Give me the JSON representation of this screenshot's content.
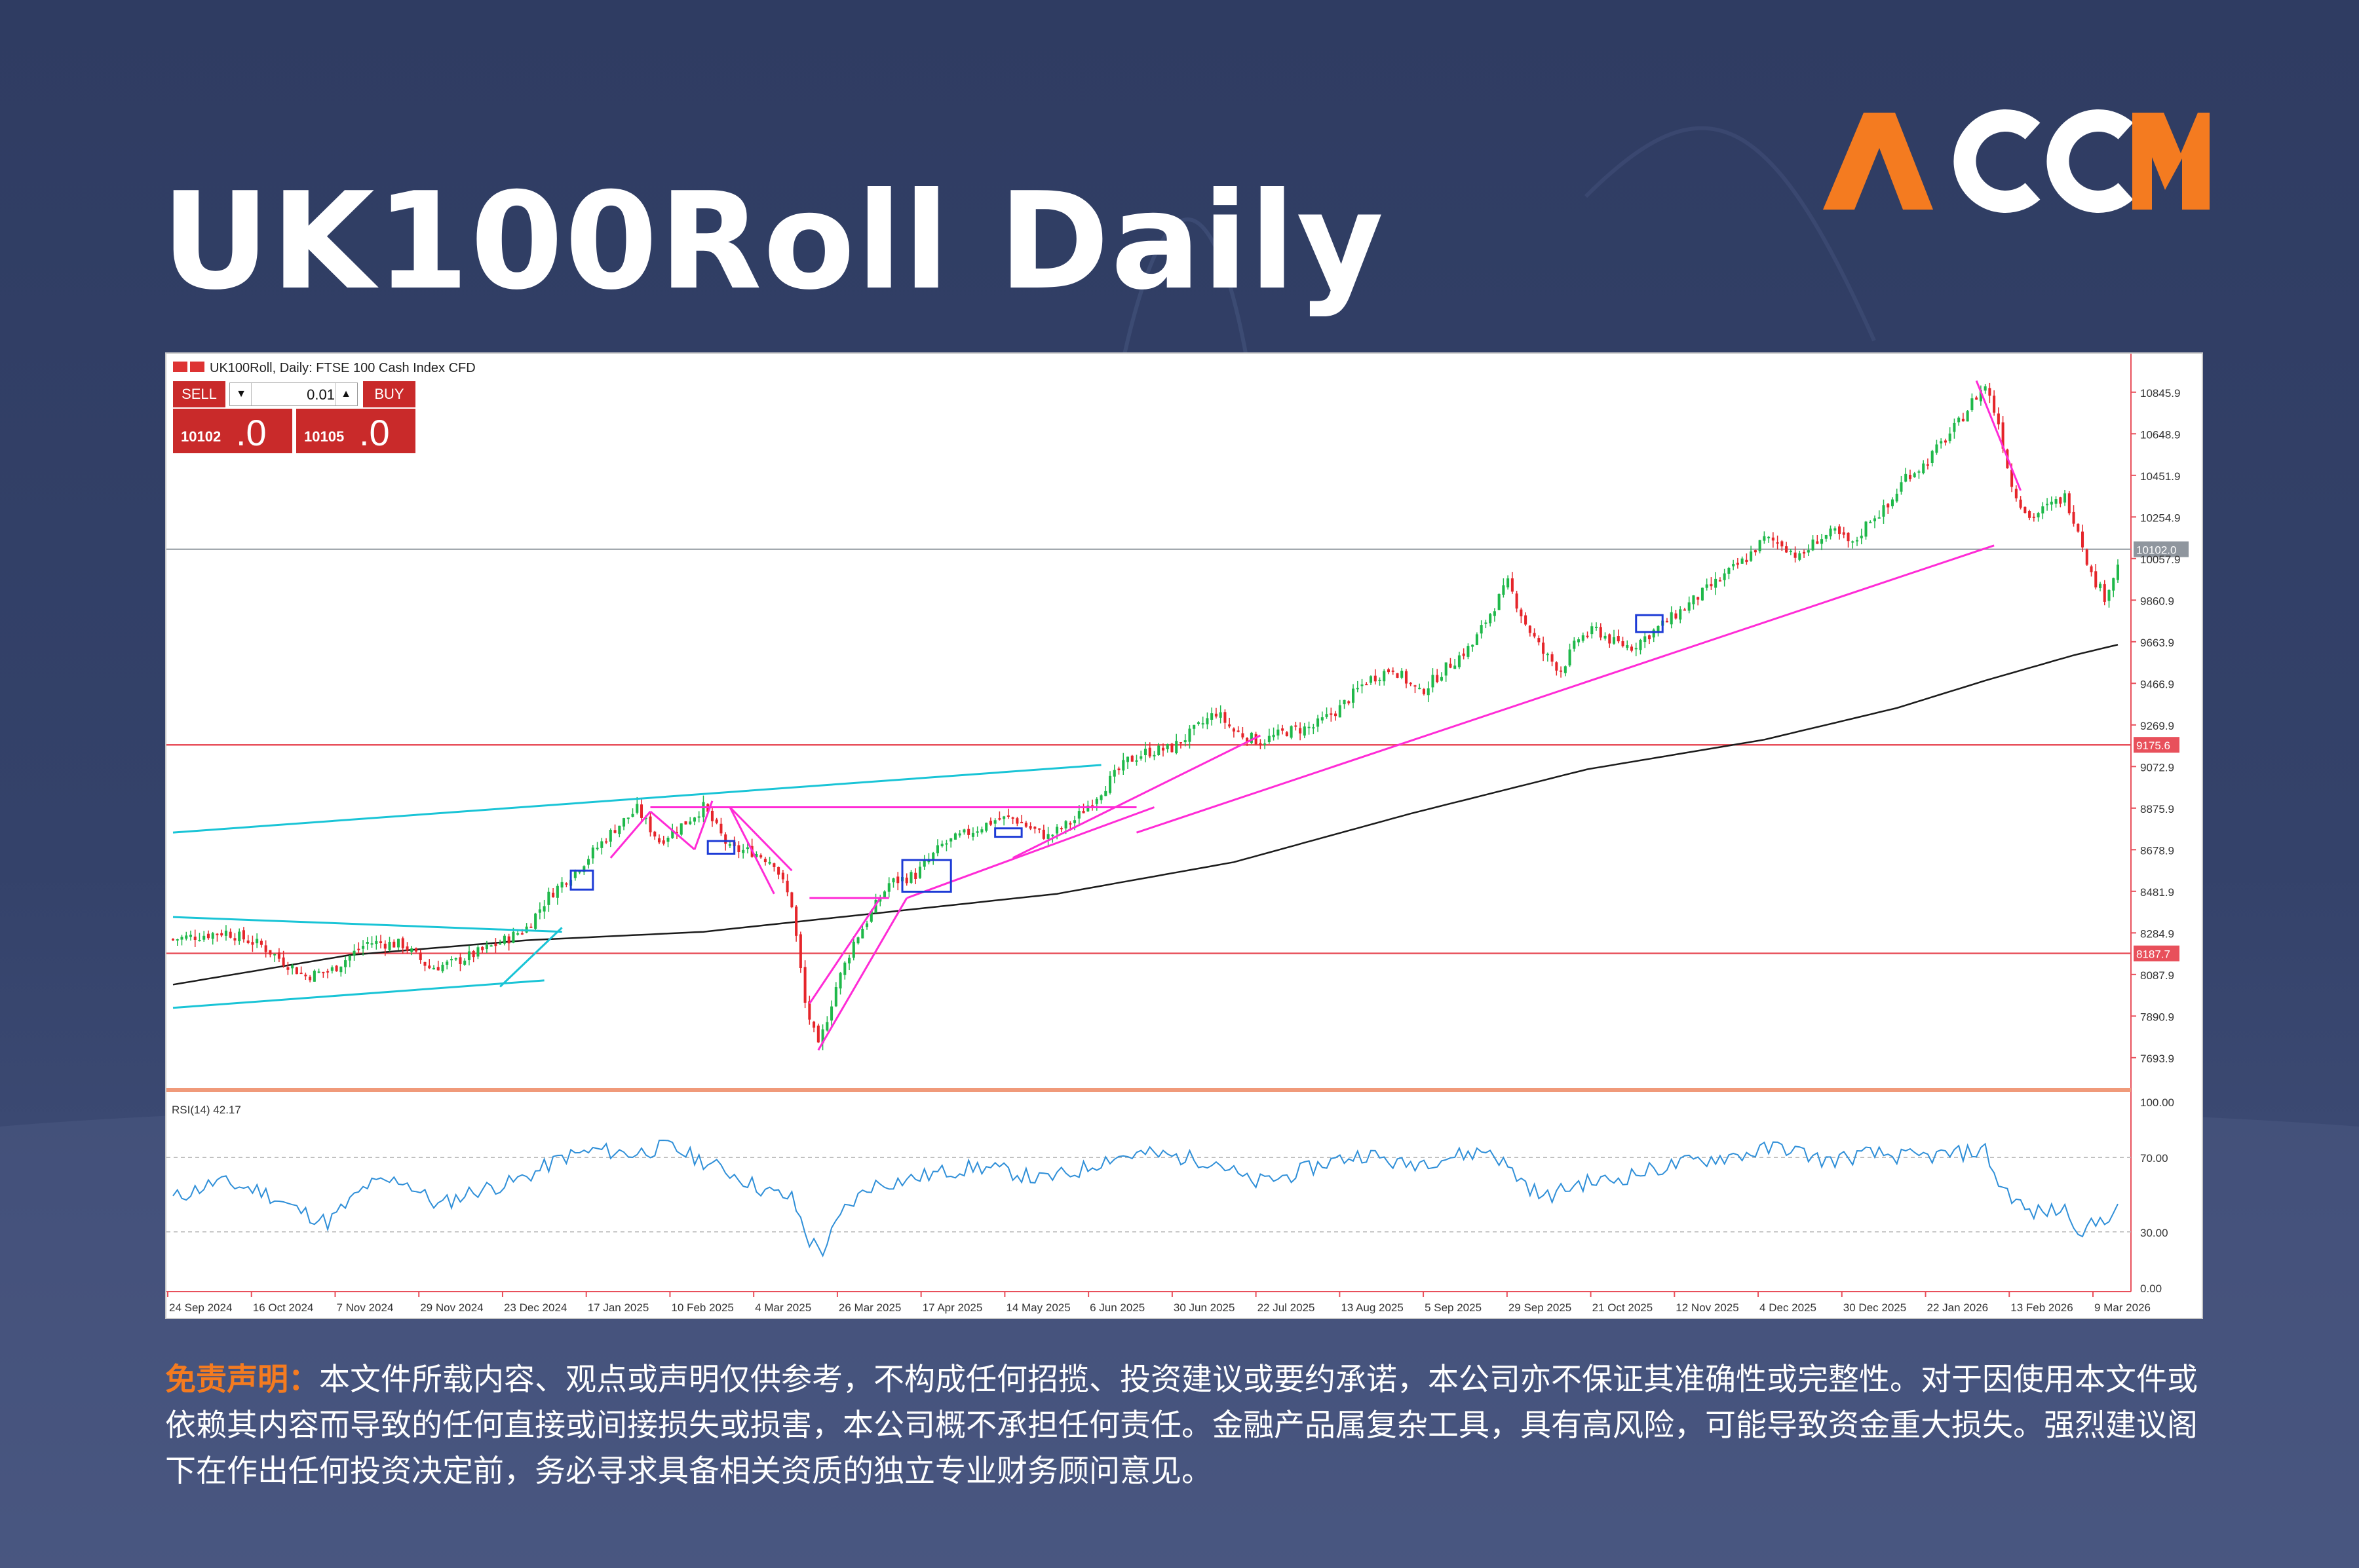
{
  "page_title": "UK100Roll Daily",
  "brand": {
    "name": "ACCM",
    "accent": "#f47b20",
    "letters_color": "#ffffff"
  },
  "chart_header": "UK100Roll, Daily: FTSE 100 Cash Index CFD",
  "trade_panel": {
    "sell_label": "SELL",
    "buy_label": "BUY",
    "volume": "0.01",
    "sell_price_small": "10102",
    "sell_price_big": ".0",
    "buy_price_small": "10105",
    "buy_price_big": ".0"
  },
  "chart_data": [
    {
      "type": "candlestick",
      "title": "UK100Roll, Daily: FTSE 100 Cash Index CFD",
      "y_ticks": [
        7693.9,
        7890.9,
        8087.9,
        8284.9,
        8481.9,
        8678.9,
        8875.9,
        9072.9,
        9269.9,
        9466.9,
        9663.9,
        9860.9,
        10057.9,
        10254.9,
        10451.9,
        10648.9,
        10845.9
      ],
      "ylim": [
        7560,
        10960
      ],
      "x_ticks": [
        "24 Sep 2024",
        "16 Oct 2024",
        "7 Nov 2024",
        "29 Nov 2024",
        "23 Dec 2024",
        "17 Jan 2025",
        "10 Feb 2025",
        "4 Mar 2025",
        "26 Mar 2025",
        "17 Apr 2025",
        "14 May 2025",
        "6 Jun 2025",
        "30 Jun 2025",
        "22 Jul 2025",
        "13 Aug 2025",
        "5 Sep 2025",
        "29 Sep 2025",
        "21 Oct 2025",
        "12 Nov 2025",
        "4 Dec 2025",
        "30 Dec 2025",
        "22 Jan 2026",
        "13 Feb 2026",
        "9 Mar 2026"
      ],
      "current_price": {
        "label": "10102.0",
        "value": 10102.0
      },
      "horizontal_levels": [
        {
          "label": "9175.6",
          "value": 9175.6,
          "color": "#e8505b"
        },
        {
          "label": "8187.7",
          "value": 8187.7,
          "color": "#e8505b"
        }
      ],
      "close_anchors": [
        [
          0,
          8255
        ],
        [
          12,
          8290
        ],
        [
          20,
          8225
        ],
        [
          25,
          8150
        ],
        [
          30,
          8080
        ],
        [
          36,
          8110
        ],
        [
          44,
          8240
        ],
        [
          52,
          8230
        ],
        [
          58,
          8120
        ],
        [
          63,
          8140
        ],
        [
          70,
          8200
        ],
        [
          76,
          8260
        ],
        [
          80,
          8310
        ],
        [
          85,
          8460
        ],
        [
          92,
          8600
        ],
        [
          100,
          8780
        ],
        [
          105,
          8870
        ],
        [
          110,
          8720
        ],
        [
          116,
          8810
        ],
        [
          120,
          8880
        ],
        [
          126,
          8680
        ],
        [
          131,
          8670
        ],
        [
          136,
          8620
        ],
        [
          140,
          8420
        ],
        [
          143,
          7950
        ],
        [
          146,
          7740
        ],
        [
          150,
          8030
        ],
        [
          154,
          8240
        ],
        [
          158,
          8380
        ],
        [
          162,
          8520
        ],
        [
          168,
          8560
        ],
        [
          174,
          8700
        ],
        [
          180,
          8760
        ],
        [
          186,
          8820
        ],
        [
          190,
          8830
        ],
        [
          194,
          8780
        ],
        [
          198,
          8740
        ],
        [
          204,
          8820
        ],
        [
          210,
          8960
        ],
        [
          216,
          9100
        ],
        [
          220,
          9140
        ],
        [
          226,
          9160
        ],
        [
          232,
          9260
        ],
        [
          236,
          9330
        ],
        [
          240,
          9240
        ],
        [
          246,
          9190
        ],
        [
          252,
          9240
        ],
        [
          258,
          9260
        ],
        [
          264,
          9350
        ],
        [
          270,
          9480
        ],
        [
          276,
          9540
        ],
        [
          282,
          9420
        ],
        [
          288,
          9540
        ],
        [
          294,
          9650
        ],
        [
          298,
          9800
        ],
        [
          302,
          9940
        ],
        [
          306,
          9750
        ],
        [
          310,
          9610
        ],
        [
          314,
          9530
        ],
        [
          318,
          9680
        ],
        [
          322,
          9720
        ],
        [
          326,
          9660
        ],
        [
          330,
          9640
        ],
        [
          334,
          9700
        ],
        [
          338,
          9760
        ],
        [
          344,
          9860
        ],
        [
          350,
          9960
        ],
        [
          356,
          10060
        ],
        [
          360,
          10150
        ],
        [
          364,
          10130
        ],
        [
          368,
          10060
        ],
        [
          372,
          10150
        ],
        [
          376,
          10180
        ],
        [
          380,
          10120
        ],
        [
          384,
          10250
        ],
        [
          388,
          10300
        ],
        [
          392,
          10450
        ],
        [
          396,
          10500
        ],
        [
          400,
          10600
        ],
        [
          404,
          10700
        ],
        [
          407,
          10800
        ],
        [
          410,
          10880
        ],
        [
          413,
          10700
        ],
        [
          416,
          10400
        ],
        [
          420,
          10250
        ],
        [
          424,
          10300
        ],
        [
          428,
          10350
        ],
        [
          431,
          10200
        ],
        [
          434,
          9980
        ],
        [
          437,
          9880
        ],
        [
          440,
          10020
        ]
      ],
      "moving_average": [
        [
          0,
          8040
        ],
        [
          40,
          8180
        ],
        [
          80,
          8250
        ],
        [
          120,
          8290
        ],
        [
          160,
          8380
        ],
        [
          200,
          8470
        ],
        [
          240,
          8620
        ],
        [
          280,
          8850
        ],
        [
          320,
          9060
        ],
        [
          360,
          9200
        ],
        [
          390,
          9350
        ],
        [
          410,
          9480
        ],
        [
          430,
          9600
        ],
        [
          440,
          9650
        ]
      ],
      "rsi": {
        "label": "RSI(14) 42.17",
        "period": 14,
        "value": 42.17,
        "y_ticks": [
          100.0,
          70.0,
          30.0,
          0.0
        ],
        "anchors": [
          [
            0,
            48
          ],
          [
            10,
            57
          ],
          [
            20,
            52
          ],
          [
            28,
            42
          ],
          [
            35,
            35
          ],
          [
            44,
            55
          ],
          [
            52,
            58
          ],
          [
            60,
            44
          ],
          [
            68,
            52
          ],
          [
            76,
            56
          ],
          [
            82,
            62
          ],
          [
            88,
            70
          ],
          [
            96,
            74
          ],
          [
            104,
            72
          ],
          [
            112,
            76
          ],
          [
            118,
            70
          ],
          [
            126,
            62
          ],
          [
            134,
            52
          ],
          [
            140,
            48
          ],
          [
            144,
            25
          ],
          [
            147,
            20
          ],
          [
            152,
            42
          ],
          [
            158,
            55
          ],
          [
            166,
            58
          ],
          [
            174,
            62
          ],
          [
            182,
            65
          ],
          [
            190,
            62
          ],
          [
            196,
            58
          ],
          [
            204,
            62
          ],
          [
            212,
            70
          ],
          [
            220,
            72
          ],
          [
            228,
            70
          ],
          [
            236,
            68
          ],
          [
            244,
            56
          ],
          [
            252,
            60
          ],
          [
            262,
            68
          ],
          [
            270,
            72
          ],
          [
            278,
            66
          ],
          [
            288,
            70
          ],
          [
            298,
            74
          ],
          [
            304,
            60
          ],
          [
            310,
            48
          ],
          [
            318,
            56
          ],
          [
            326,
            58
          ],
          [
            334,
            63
          ],
          [
            344,
            68
          ],
          [
            356,
            72
          ],
          [
            364,
            76
          ],
          [
            374,
            68
          ],
          [
            384,
            72
          ],
          [
            394,
            70
          ],
          [
            404,
            72
          ],
          [
            410,
            74
          ],
          [
            413,
            56
          ],
          [
            420,
            40
          ],
          [
            428,
            42
          ],
          [
            432,
            30
          ],
          [
            436,
            36
          ],
          [
            440,
            42.17
          ]
        ]
      },
      "drawings": [
        {
          "type": "trendline",
          "color": "#19c4d6",
          "from": [
            0,
            8760
          ],
          "to": [
            210,
            9080
          ]
        },
        {
          "type": "trendline",
          "color": "#19c4d6",
          "from": [
            0,
            8360
          ],
          "to": [
            88,
            8290
          ]
        },
        {
          "type": "trendline",
          "color": "#19c4d6",
          "from": [
            0,
            7930
          ],
          "to": [
            84,
            8060
          ]
        },
        {
          "type": "trendline",
          "color": "#19c4d6",
          "from": [
            74,
            8030
          ],
          "to": [
            88,
            8310
          ]
        },
        {
          "type": "trendline",
          "color": "#ff2bd6",
          "from": [
            108,
            8880
          ],
          "to": [
            218,
            8880
          ]
        },
        {
          "type": "trendline",
          "color": "#ff2bd6",
          "from": [
            166,
            8450
          ],
          "to": [
            222,
            8880
          ]
        },
        {
          "type": "trendline",
          "color": "#ff2bd6",
          "from": [
            190,
            8640
          ],
          "to": [
            246,
            9220
          ]
        },
        {
          "type": "trendline",
          "color": "#ff2bd6",
          "from": [
            218,
            8760
          ],
          "to": [
            412,
            10120
          ]
        },
        {
          "type": "trendline",
          "color": "#ff2bd6",
          "from": [
            408,
            10900
          ],
          "to": [
            418,
            10380
          ]
        },
        {
          "type": "trendline",
          "color": "#ff2bd6",
          "from": [
            146,
            7730
          ],
          "to": [
            166,
            8450
          ]
        },
        {
          "type": "trendline",
          "color": "#ff2bd6",
          "from": [
            144,
            7950
          ],
          "to": [
            160,
            8450
          ]
        },
        {
          "type": "trendline",
          "color": "#ff2bd6",
          "from": [
            144,
            8450
          ],
          "to": [
            162,
            8450
          ]
        },
        {
          "type": "trendline",
          "color": "#ff2bd6",
          "from": [
            99,
            8640
          ],
          "to": [
            108,
            8860
          ]
        },
        {
          "type": "trendline",
          "color": "#ff2bd6",
          "from": [
            108,
            8860
          ],
          "to": [
            118,
            8680
          ]
        },
        {
          "type": "trendline",
          "color": "#ff2bd6",
          "from": [
            118,
            8680
          ],
          "to": [
            122,
            8910
          ]
        },
        {
          "type": "trendline",
          "color": "#ff2bd6",
          "from": [
            126,
            8880
          ],
          "to": [
            140,
            8580
          ]
        },
        {
          "type": "trendline",
          "color": "#ff2bd6",
          "from": [
            126,
            8880
          ],
          "to": [
            136,
            8470
          ]
        },
        {
          "type": "box",
          "color": "#1d3bd6",
          "from": [
            90,
            8490
          ],
          "to": [
            95,
            8580
          ]
        },
        {
          "type": "box",
          "color": "#1d3bd6",
          "from": [
            121,
            8660
          ],
          "to": [
            127,
            8720
          ]
        },
        {
          "type": "box",
          "color": "#1d3bd6",
          "from": [
            165,
            8480
          ],
          "to": [
            176,
            8630
          ]
        },
        {
          "type": "box",
          "color": "#1d3bd6",
          "from": [
            186,
            8740
          ],
          "to": [
            192,
            8780
          ]
        },
        {
          "type": "box",
          "color": "#1d3bd6",
          "from": [
            331,
            9710
          ],
          "to": [
            337,
            9790
          ]
        }
      ]
    }
  ],
  "disclaimer": {
    "label": "免责声明：",
    "text": "本文件所载内容、观点或声明仅供参考，不构成任何招揽、投资建议或要约承诺，本公司亦不保证其准确性或完整性。对于因使用本文件或依赖其内容而导致的任何直接或间接损失或损害，本公司概不承担任何责任。金融产品属复杂工具，具有高风险，可能导致资金重大损失。强烈建议阁下在作出任何投资决定前，务必寻求具备相关资质的独立专业财务顾问意见。"
  }
}
